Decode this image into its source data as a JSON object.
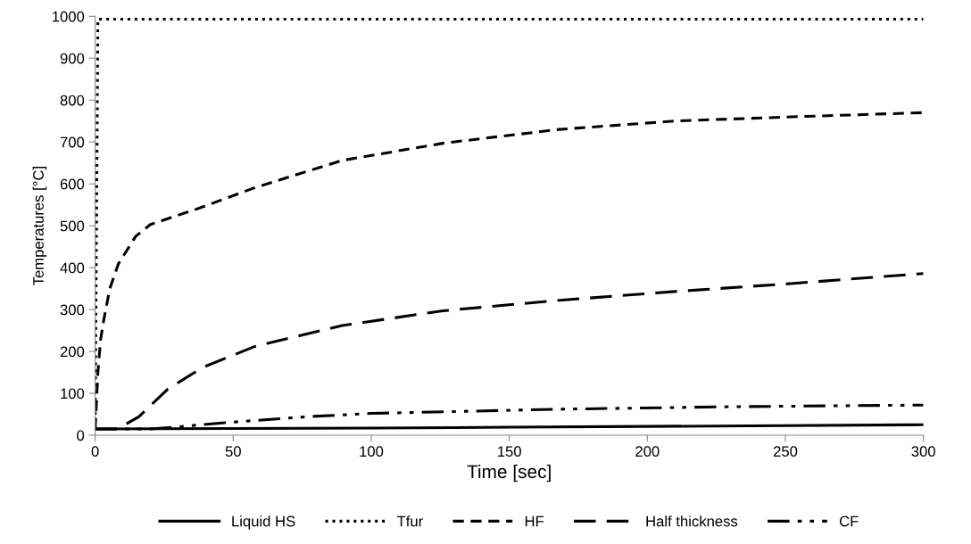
{
  "chart_data": {
    "type": "line",
    "xlabel": "Time [sec]",
    "ylabel": "Temperatures [°C]",
    "xlim": [
      0,
      300
    ],
    "ylim": [
      0,
      1000
    ],
    "xticks": [
      0,
      50,
      100,
      150,
      200,
      250,
      300
    ],
    "yticks": [
      0,
      100,
      200,
      300,
      400,
      500,
      600,
      700,
      800,
      900,
      1000
    ],
    "grid": false,
    "legend": "bottom",
    "marker": "none",
    "series": [
      {
        "name": "Liquid HS",
        "color": "#000000",
        "line_style": "solid",
        "x": [
          0,
          50,
          100,
          150,
          200,
          250,
          300
        ],
        "values": [
          15,
          16,
          17,
          19,
          21,
          23,
          25
        ]
      },
      {
        "name": "Tfur",
        "color": "#000000",
        "line_style": "dotted",
        "x": [
          0,
          1,
          300
        ],
        "values": [
          15,
          993,
          993
        ]
      },
      {
        "name": "HF",
        "color": "#000000",
        "line_style": "dashed",
        "x": [
          0,
          1,
          2,
          3.2,
          5.3,
          8.4,
          14.7,
          20,
          36.8,
          57.9,
          89.5,
          126,
          168,
          210,
          252,
          300
        ],
        "values": [
          15,
          150,
          230,
          278,
          350,
          409,
          475,
          503,
          540,
          591,
          656,
          697,
          730,
          750,
          760,
          770
        ]
      },
      {
        "name": "Half thickness",
        "color": "#000000",
        "line_style": "long_dashed",
        "x": [
          0,
          8,
          15.8,
          26.3,
          39,
          57.9,
          89.5,
          126,
          168,
          210,
          252,
          300
        ],
        "values": [
          15,
          15,
          44,
          110,
          162,
          212,
          262,
          297,
          322,
          343,
          362,
          386
        ]
      },
      {
        "name": "CF",
        "color": "#000000",
        "line_style": "dash_dot_dot",
        "x": [
          0,
          20,
          30,
          47,
          79,
          100,
          168,
          230,
          300
        ],
        "values": [
          15,
          15,
          20,
          30,
          45,
          52,
          62,
          68,
          72
        ]
      }
    ]
  }
}
